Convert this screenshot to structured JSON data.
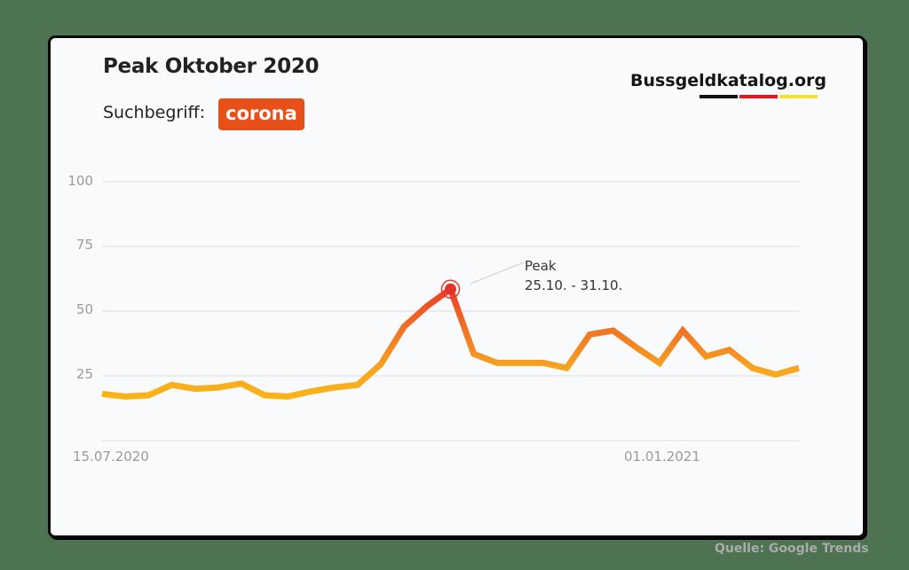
{
  "header": {
    "title": "Peak Oktober 2020",
    "search_label": "Suchbegriff:",
    "search_term": "corona",
    "brand": "Bussgeldkatalog.org"
  },
  "colors": {
    "background": "#4e7352",
    "card": "#f9fafc",
    "badge": "#e8501a",
    "line_low": "#fcbf0f",
    "line_high": "#e8382a",
    "flag_black": "#111111",
    "flag_red": "#e8161b",
    "flag_gold": "#f5e32a"
  },
  "annotation": {
    "label": "Peak",
    "range": "25.10. - 31.10."
  },
  "source": "Quelle: Google Trends",
  "chart_data": {
    "type": "line",
    "title": "Peak Oktober 2020",
    "subtitle": "Suchbegriff: corona",
    "xlabel": "",
    "ylabel": "",
    "ylim": [
      0,
      100
    ],
    "yticks": [
      25,
      50,
      75,
      100
    ],
    "xtick_labels": [
      "15.07.2020",
      "01.01.2021"
    ],
    "grid": true,
    "legend": null,
    "annotations": [
      {
        "text": "Peak 25.10. - 31.10.",
        "index": 15
      }
    ],
    "series": [
      {
        "name": "corona",
        "values": [
          18,
          17,
          17.5,
          21.5,
          20,
          20.5,
          22,
          17.5,
          17,
          19,
          20.5,
          21.5,
          29.5,
          44,
          52,
          58.5,
          33.5,
          30,
          30,
          30,
          28,
          41,
          42.5,
          36,
          30,
          42.5,
          32.5,
          35,
          28,
          25.5,
          28
        ]
      }
    ]
  }
}
